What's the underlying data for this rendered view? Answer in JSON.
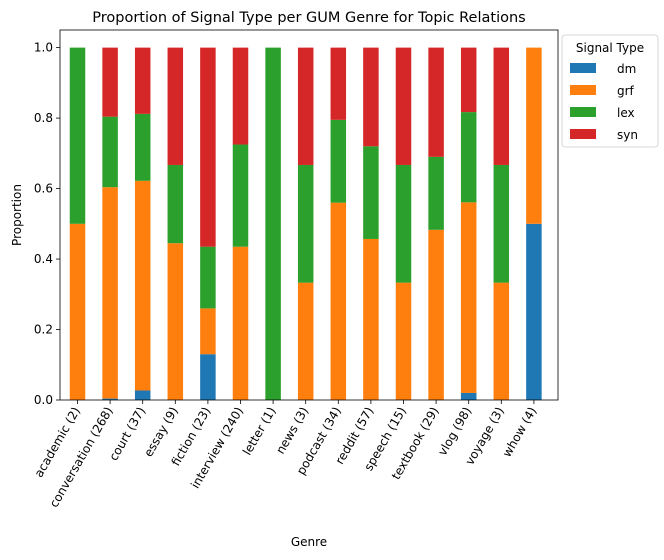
{
  "chart_data": {
    "type": "bar",
    "stacked": true,
    "title": "Proportion of Signal Type per GUM Genre for Topic Relations",
    "xlabel": "Genre",
    "ylabel": "Proportion",
    "ylim": [
      0,
      1.05
    ],
    "yticks": [
      "0.0",
      "0.2",
      "0.4",
      "0.6",
      "0.8",
      "1.0"
    ],
    "ytick_values": [
      0,
      0.2,
      0.4,
      0.6,
      0.8,
      1.0
    ],
    "categories": [
      "academic (2)",
      "conversation (268)",
      "court (37)",
      "essay (9)",
      "fiction (23)",
      "interview (240)",
      "letter (1)",
      "news (3)",
      "podcast (34)",
      "reddit (57)",
      "speech (15)",
      "textbook (29)",
      "vlog (98)",
      "voyage (3)",
      "whow (4)"
    ],
    "legend_title": "Signal Type",
    "legend_position": "outside-right-top",
    "series": [
      {
        "name": "dm",
        "color": "#1f77b4",
        "values": [
          0,
          0.004,
          0.027,
          0,
          0.13,
          0,
          0,
          0,
          0,
          0,
          0,
          0,
          0.02,
          0,
          0.5
        ]
      },
      {
        "name": "grf",
        "color": "#ff7f0e",
        "values": [
          0.5,
          0.6,
          0.595,
          0.445,
          0.13,
          0.435,
          0,
          0.333,
          0.56,
          0.457,
          0.333,
          0.483,
          0.541,
          0.333,
          0.5
        ]
      },
      {
        "name": "lex",
        "color": "#2ca02c",
        "values": [
          0.5,
          0.2,
          0.19,
          0.222,
          0.175,
          0.29,
          1.0,
          0.334,
          0.235,
          0.263,
          0.334,
          0.207,
          0.256,
          0.334,
          0
        ]
      },
      {
        "name": "syn",
        "color": "#d62728",
        "values": [
          0,
          0.196,
          0.188,
          0.333,
          0.565,
          0.275,
          0,
          0.333,
          0.205,
          0.28,
          0.333,
          0.31,
          0.183,
          0.333,
          0
        ]
      }
    ]
  }
}
